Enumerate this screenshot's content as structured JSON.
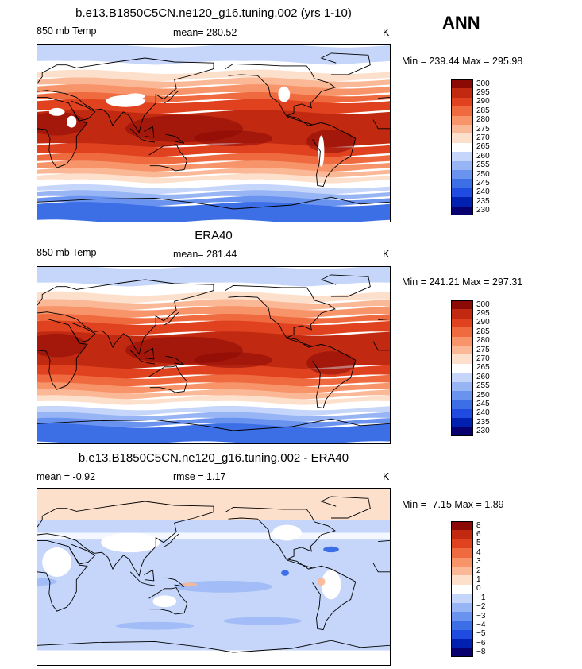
{
  "season": "ANN",
  "colors": {
    "abs_palette": [
      "#08006e",
      "#0020b0",
      "#1f4be0",
      "#3c6ee6",
      "#6a93ef",
      "#97b5f5",
      "#c5d6fa",
      "#ffffff",
      "#fde0cc",
      "#fbb896",
      "#f8946a",
      "#ef6b3f",
      "#e04220",
      "#c12a10",
      "#8b0a05"
    ],
    "diff_palette": [
      "#08006e",
      "#0020b0",
      "#1f4be0",
      "#3c6ee6",
      "#6a93ef",
      "#97b5f5",
      "#c5d6fa",
      "#ffffff",
      "#fde0cc",
      "#fbb896",
      "#f8946a",
      "#ef6b3f",
      "#e04220",
      "#c12a10",
      "#8b0a05"
    ]
  },
  "panels": [
    {
      "title": "b.e13.B1850C5CN.ne120_g16.tuning.002 (yrs 1-10)",
      "left_label": "850 mb Temp",
      "mean_label": "mean=",
      "mean_value": "280.52",
      "units": "K",
      "min_label": "Min =",
      "min_value": "239.44",
      "max_label": "Max =",
      "max_value": "295.98",
      "legend_ticks": [
        "300",
        "295",
        "290",
        "285",
        "280",
        "275",
        "270",
        "265",
        "260",
        "255",
        "250",
        "245",
        "240",
        "235",
        "230"
      ]
    },
    {
      "title": "ERA40",
      "left_label": "850 mb Temp",
      "mean_label": "mean=",
      "mean_value": "281.44",
      "units": "K",
      "min_label": "Min =",
      "min_value": "241.21",
      "max_label": "Max =",
      "max_value": "297.31",
      "legend_ticks": [
        "300",
        "295",
        "290",
        "285",
        "280",
        "275",
        "270",
        "265",
        "260",
        "255",
        "250",
        "245",
        "240",
        "235",
        "230"
      ]
    },
    {
      "title": "b.e13.B1850C5CN.ne120_g16.tuning.002 - ERA40",
      "left_label": "mean =",
      "left_value": "-0.92",
      "mean_label": "rmse =",
      "mean_value": "1.17",
      "units": "K",
      "min_label": "Min =",
      "min_value": "-7.15",
      "max_label": "Max =",
      "max_value": "1.89",
      "legend_ticks": [
        "8",
        "6",
        "5",
        "4",
        "3",
        "2",
        "1",
        "0",
        "−1",
        "−2",
        "−3",
        "−4",
        "−5",
        "−6",
        "−8"
      ]
    }
  ],
  "chart_data": [
    {
      "type": "heatmap",
      "title": "b.e13.B1850C5CN.ne120_g16.tuning.002 (yrs 1-10)",
      "variable": "850 mb Temp",
      "units": "K",
      "mean": 280.52,
      "min": 239.44,
      "max": 295.98,
      "levels": [
        230,
        235,
        240,
        245,
        250,
        255,
        260,
        265,
        270,
        275,
        280,
        285,
        290,
        295,
        300
      ]
    },
    {
      "type": "heatmap",
      "title": "ERA40",
      "variable": "850 mb Temp",
      "units": "K",
      "mean": 281.44,
      "min": 241.21,
      "max": 297.31,
      "levels": [
        230,
        235,
        240,
        245,
        250,
        255,
        260,
        265,
        270,
        275,
        280,
        285,
        290,
        295,
        300
      ]
    },
    {
      "type": "heatmap",
      "title": "b.e13.B1850C5CN.ne120_g16.tuning.002 - ERA40",
      "units": "K",
      "mean": -0.92,
      "rmse": 1.17,
      "min": -7.15,
      "max": 1.89,
      "levels": [
        -8,
        -6,
        -5,
        -4,
        -3,
        -2,
        -1,
        0,
        1,
        2,
        3,
        4,
        5,
        6,
        8
      ]
    }
  ]
}
